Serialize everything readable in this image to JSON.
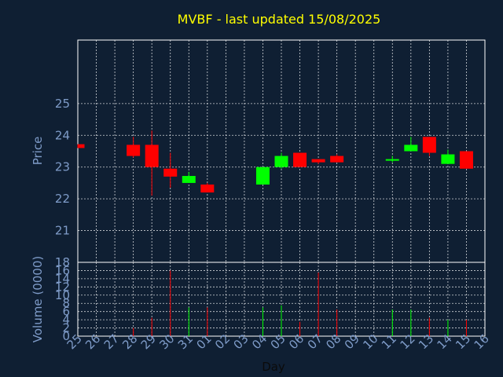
{
  "chart_data": {
    "type": "candlestick",
    "title": "MVBF - last updated 15/08/2025",
    "xlabel": "Day",
    "price_panel": {
      "ylabel": "Price",
      "yticks": [
        21,
        22,
        23,
        24,
        25
      ],
      "ylim": [
        20.0,
        27.0
      ],
      "grid": true
    },
    "volume_panel": {
      "ylabel": "Volume (0000)",
      "yticks": [
        0,
        2,
        4,
        6,
        8,
        10,
        12,
        14,
        16,
        18
      ],
      "ylim": [
        0,
        18
      ],
      "grid": true
    },
    "x_labels": [
      "25",
      "26",
      "27",
      "28",
      "29",
      "30",
      "31",
      "01",
      "02",
      "03",
      "04",
      "05",
      "06",
      "07",
      "08",
      "09",
      "10",
      "11",
      "12",
      "13",
      "14",
      "15",
      "16"
    ],
    "candles": [
      {
        "day": "25",
        "open": 23.72,
        "close": 23.6,
        "high": 23.72,
        "low": 23.6,
        "volume": 0
      },
      {
        "day": "28",
        "open": 23.7,
        "close": 23.35,
        "high": 23.95,
        "low": 23.3,
        "volume": 2
      },
      {
        "day": "29",
        "open": 23.7,
        "close": 23.0,
        "high": 24.15,
        "low": 22.1,
        "volume": 4.5
      },
      {
        "day": "30",
        "open": 22.95,
        "close": 22.7,
        "high": 23.45,
        "low": 22.35,
        "volume": 16
      },
      {
        "day": "31",
        "open": 22.5,
        "close": 22.72,
        "high": 22.85,
        "low": 22.5,
        "volume": 7
      },
      {
        "day": "01",
        "open": 22.45,
        "close": 22.2,
        "high": 22.5,
        "low": 22.2,
        "volume": 7
      },
      {
        "day": "04",
        "open": 22.45,
        "close": 23.0,
        "high": 23.0,
        "low": 22.45,
        "volume": 7
      },
      {
        "day": "05",
        "open": 23.0,
        "close": 23.35,
        "high": 23.45,
        "low": 22.95,
        "volume": 7.5
      },
      {
        "day": "06",
        "open": 23.45,
        "close": 23.0,
        "high": 23.45,
        "low": 23.0,
        "volume": 3.5
      },
      {
        "day": "07",
        "open": 23.25,
        "close": 23.15,
        "high": 23.25,
        "low": 23.1,
        "volume": 15.5
      },
      {
        "day": "08",
        "open": 23.35,
        "close": 23.15,
        "high": 23.4,
        "low": 23.15,
        "volume": 6.5
      },
      {
        "day": "11",
        "open": 23.2,
        "close": 23.25,
        "high": 23.35,
        "low": 23.15,
        "volume": 6.5
      },
      {
        "day": "12",
        "open": 23.5,
        "close": 23.7,
        "high": 23.95,
        "low": 23.5,
        "volume": 6.5
      },
      {
        "day": "13",
        "open": 23.95,
        "close": 23.45,
        "high": 23.95,
        "low": 23.35,
        "volume": 4.5
      },
      {
        "day": "14",
        "open": 23.1,
        "close": 23.4,
        "high": 23.55,
        "low": 23.1,
        "volume": 4
      },
      {
        "day": "15",
        "open": 23.5,
        "close": 22.95,
        "high": 23.5,
        "low": 22.95,
        "volume": 4
      }
    ],
    "colors": {
      "background": "#0f1f33",
      "plot_border": "#ffffff",
      "grid": "#ffffff",
      "up": "#00ff00",
      "down": "#ff0000",
      "tick_text": "#7f9cc9",
      "title": "#ffff00"
    }
  }
}
